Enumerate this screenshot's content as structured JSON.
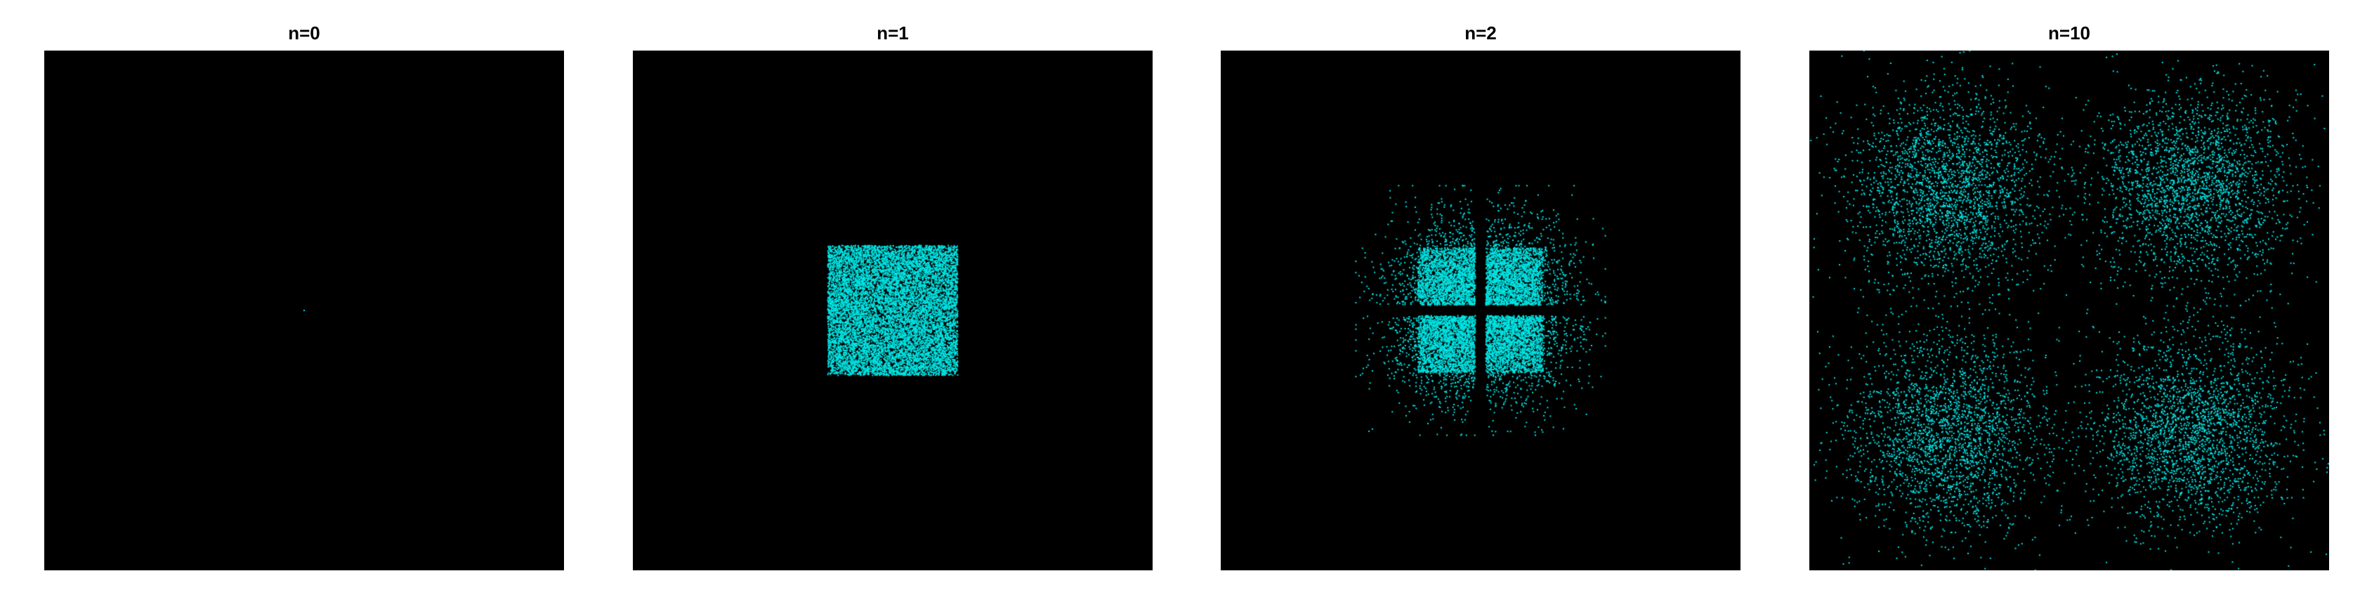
{
  "chart_data": [
    {
      "type": "scatter",
      "title": "n=0",
      "xlabel": "",
      "ylabel": "",
      "axes_visible": false,
      "background": "#000000",
      "marker_color": "#00e5e5",
      "distribution": "single point at origin",
      "points": [
        [
          0,
          0
        ]
      ],
      "point_count": 1
    },
    {
      "type": "scatter",
      "title": "n=1",
      "xlabel": "",
      "ylabel": "",
      "axes_visible": false,
      "background": "#000000",
      "marker_color": "#00e5e5",
      "distribution": "uniform square centered at origin",
      "clusters": [
        {
          "center": [
            0,
            0
          ],
          "half_width": 0.25,
          "kind": "uniform-square"
        }
      ],
      "point_count": 10000
    },
    {
      "type": "scatter",
      "title": "n=2",
      "xlabel": "",
      "ylabel": "",
      "axes_visible": false,
      "background": "#000000",
      "marker_color": "#00e5e5",
      "distribution": "four dense square clusters with diffuse halo and a gap along both axes",
      "clusters": [
        {
          "center": [
            -0.13,
            0.13
          ],
          "half_width": 0.11,
          "kind": "dense-square"
        },
        {
          "center": [
            0.13,
            0.13
          ],
          "half_width": 0.11,
          "kind": "dense-square"
        },
        {
          "center": [
            -0.13,
            -0.13
          ],
          "half_width": 0.11,
          "kind": "dense-square"
        },
        {
          "center": [
            0.13,
            -0.13
          ],
          "half_width": 0.11,
          "kind": "dense-square"
        },
        {
          "center": [
            0,
            0
          ],
          "half_width": 0.48,
          "kind": "halo"
        }
      ],
      "point_count": 10000
    },
    {
      "type": "scatter",
      "title": "n=10",
      "xlabel": "",
      "ylabel": "",
      "axes_visible": false,
      "background": "#000000",
      "marker_color": "#00e5e5",
      "distribution": "four roughly gaussian clusters in the quadrants",
      "clusters": [
        {
          "center": [
            -0.47,
            0.47
          ],
          "sigma": 0.19,
          "kind": "gaussian"
        },
        {
          "center": [
            0.47,
            0.47
          ],
          "sigma": 0.19,
          "kind": "gaussian"
        },
        {
          "center": [
            -0.47,
            -0.47
          ],
          "sigma": 0.19,
          "kind": "gaussian"
        },
        {
          "center": [
            0.47,
            -0.47
          ],
          "sigma": 0.19,
          "kind": "gaussian"
        }
      ],
      "point_count": 10000
    }
  ]
}
